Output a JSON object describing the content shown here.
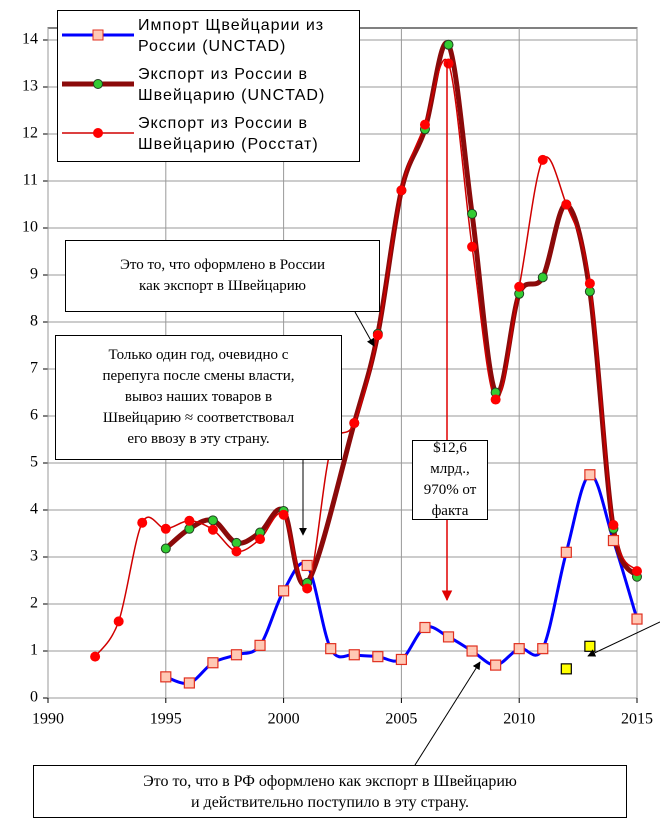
{
  "chart_data": {
    "type": "line",
    "series": [
      {
        "name": "Импорт Щвейцарии из России (UNCTAD)",
        "color": "#0000ff",
        "width": 3,
        "marker": "square",
        "marker_fill": "#ffc8b4",
        "marker_stroke": "#e03020",
        "x": [
          1995,
          1996,
          1997,
          1998,
          1999,
          2000,
          2001,
          2002,
          2003,
          2004,
          2005,
          2006,
          2007,
          2008,
          2009,
          2010,
          2011,
          2012,
          2013,
          2014,
          2015
        ],
        "values": [
          0.45,
          0.32,
          0.75,
          0.92,
          1.12,
          2.28,
          2.82,
          1.05,
          0.92,
          0.88,
          0.82,
          1.5,
          1.3,
          1.0,
          0.7,
          1.05,
          1.05,
          3.1,
          4.75,
          3.35,
          1.68
        ]
      },
      {
        "name": "Экспорт из России в Швейцарию (UNCTAD)",
        "color": "#8b0a0a",
        "width": 5,
        "marker": "circle",
        "marker_fill": "#33cc33",
        "marker_stroke": "#204020",
        "x": [
          1995,
          1996,
          1997,
          1998,
          1999,
          2000,
          2001,
          2003,
          2004,
          2005,
          2006,
          2007,
          2008,
          2009,
          2010,
          2011,
          2012,
          2013,
          2014,
          2015
        ],
        "values": [
          3.18,
          3.6,
          3.78,
          3.3,
          3.52,
          3.98,
          2.45,
          5.85,
          7.75,
          10.8,
          12.1,
          13.9,
          10.3,
          6.5,
          8.6,
          8.95,
          10.5,
          8.65,
          3.6,
          2.58
        ]
      },
      {
        "name": "Экспорт из России в Швейцарию (Росстат)",
        "color": "#d00000",
        "width": 1.5,
        "marker": "circle",
        "marker_fill": "#ff0000",
        "marker_stroke": "#ff0000",
        "x": [
          1992,
          1993,
          1994,
          1995,
          1996,
          1997,
          1998,
          1999,
          2000,
          2001,
          2002,
          2003,
          2004,
          2005,
          2006,
          2007,
          2008,
          2009,
          2010,
          2011,
          2012,
          2013,
          2014,
          2015
        ],
        "values": [
          0.88,
          1.63,
          3.73,
          3.6,
          3.77,
          3.58,
          3.12,
          3.38,
          3.9,
          2.33,
          5.3,
          5.85,
          7.72,
          10.8,
          12.2,
          13.5,
          9.6,
          6.35,
          8.75,
          11.45,
          10.5,
          8.82,
          3.68,
          2.7
        ]
      },
      {
        "color": "#ffff00",
        "width": 0,
        "marker": "square",
        "marker_fill": "#ffff00",
        "marker_stroke": "#000000",
        "x": [
          2012,
          2013
        ],
        "values": [
          0.62,
          1.1
        ]
      }
    ],
    "xlim": [
      1990,
      2015
    ],
    "xticks": [
      1990,
      1995,
      2000,
      2005,
      2010,
      2015
    ],
    "ylim": [
      0,
      14
    ],
    "yticks": [
      0,
      1,
      2,
      3,
      4,
      5,
      6,
      7,
      8,
      9,
      10,
      11,
      12,
      13,
      14
    ],
    "grid": true,
    "annotations": [
      [
        "Это то, что оформлено в России",
        "как экспорт в Швейцарию"
      ],
      [
        "Только один  год, очевидно с",
        "перепуга после смены власти,",
        "вывоз наших товаров в",
        "Швейцарию ≈ соответствовал",
        "его ввозу в эту страну."
      ],
      [
        "$12,6 млрд.,",
        "970% от",
        "факта"
      ],
      [
        "Это то, что в РФ оформлено как экспорт в Швейцарию",
        "и действительно поступило в эту страну."
      ]
    ]
  }
}
